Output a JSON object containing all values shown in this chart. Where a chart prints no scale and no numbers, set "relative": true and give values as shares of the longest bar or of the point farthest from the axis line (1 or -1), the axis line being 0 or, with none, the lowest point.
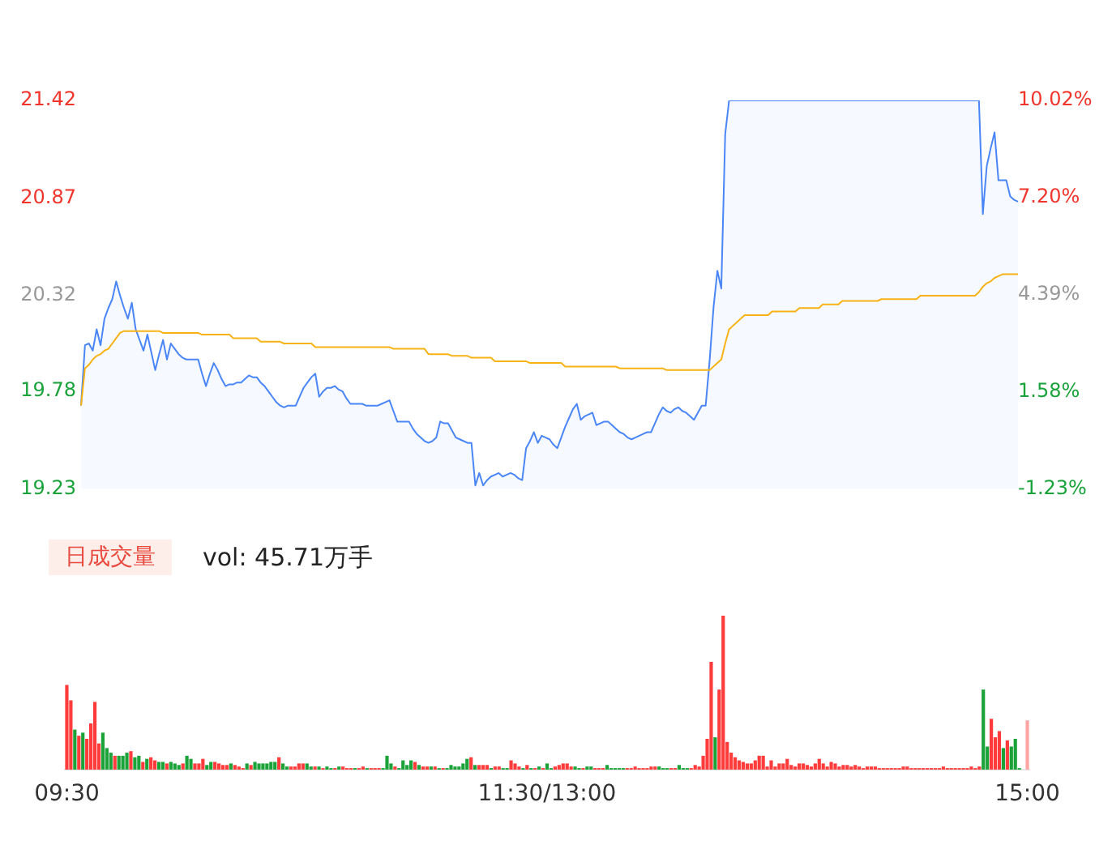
{
  "chart_data": [
    {
      "type": "line",
      "ylim": [
        19.23,
        21.42
      ],
      "yticks": [
        19.23,
        19.78,
        20.32,
        20.87,
        21.42
      ],
      "y2lim": [
        -1.23,
        10.02
      ],
      "y2ticks": [
        {
          "value": -1.23,
          "label": "-1.23%"
        },
        {
          "value": 1.58,
          "label": "1.58%"
        },
        {
          "value": 4.39,
          "label": "4.39%"
        },
        {
          "value": 7.2,
          "label": "7.20%"
        },
        {
          "value": 10.02,
          "label": "10.02%"
        }
      ],
      "tick_labels": "y",
      "categories": [
        null,
        null,
        null,
        null,
        null,
        null,
        null,
        null,
        null,
        null,
        null,
        null,
        null,
        null,
        null,
        null,
        null,
        null,
        null,
        null,
        null,
        null,
        null,
        null,
        null,
        null,
        null,
        null,
        null,
        null,
        null,
        null,
        null,
        null,
        null,
        null,
        null,
        null,
        null,
        null,
        null,
        null,
        null,
        null,
        null,
        null,
        null,
        null,
        null,
        null,
        null,
        null,
        null,
        null,
        null,
        null,
        null,
        null,
        null,
        null,
        null,
        null,
        null,
        null,
        null,
        null,
        null,
        null,
        null,
        null,
        null,
        null,
        null,
        null,
        null,
        null,
        null,
        null,
        null,
        null,
        null,
        null,
        null,
        null,
        null,
        null,
        null,
        null,
        null,
        null,
        null,
        null,
        null,
        null,
        null,
        null,
        null,
        null,
        null,
        null,
        null,
        null,
        null,
        null,
        null,
        null,
        null,
        null,
        null,
        null,
        null,
        null,
        null,
        null,
        null,
        null,
        null,
        null,
        null,
        null,
        null,
        null,
        null,
        null,
        null,
        null,
        null,
        null,
        null,
        null,
        null,
        null,
        null,
        null,
        null,
        null,
        null,
        null,
        null,
        null,
        null,
        null,
        null,
        null,
        null,
        null,
        null,
        null,
        null,
        null,
        null,
        null,
        null,
        null,
        null,
        null,
        null,
        null,
        null,
        null,
        null,
        null,
        null,
        null,
        null,
        null,
        null,
        null,
        null,
        null,
        null,
        null,
        null,
        null,
        null,
        null,
        null,
        null,
        null,
        null,
        null,
        null,
        null,
        null,
        null,
        null,
        null,
        null,
        null,
        null,
        null,
        null,
        null,
        null,
        null,
        null,
        null,
        null,
        null,
        null,
        null,
        null,
        null,
        null,
        null,
        null,
        null,
        null,
        null,
        null,
        null,
        null,
        null,
        null,
        null,
        null,
        null,
        null,
        null,
        null,
        null,
        null,
        null,
        null,
        null,
        null,
        null,
        null,
        null,
        null,
        null,
        null,
        null,
        null,
        null,
        null,
        null,
        null,
        null,
        null,
        null
      ],
      "series": [
        {
          "type": "area",
          "color": "#4a86f7",
          "values": [
            19.7,
            20.04,
            20.05,
            20.01,
            20.13,
            20.04,
            20.19,
            20.25,
            20.3,
            20.4,
            20.32,
            20.25,
            20.19,
            20.28,
            20.13,
            20.07,
            20.01,
            20.1,
            20.0,
            19.9,
            19.99,
            20.07,
            19.96,
            20.05,
            20.02,
            19.99,
            19.97,
            19.96,
            19.96,
            19.96,
            19.96,
            19.88,
            19.81,
            19.88,
            19.94,
            19.9,
            19.85,
            19.81,
            19.82,
            19.82,
            19.83,
            19.83,
            19.85,
            19.87,
            19.86,
            19.86,
            19.83,
            19.81,
            19.78,
            19.75,
            19.72,
            19.7,
            19.69,
            19.7,
            19.7,
            19.7,
            19.75,
            19.8,
            19.83,
            19.86,
            19.88,
            19.75,
            19.78,
            19.8,
            19.8,
            19.81,
            19.79,
            19.78,
            19.74,
            19.71,
            19.71,
            19.71,
            19.71,
            19.7,
            19.7,
            19.7,
            19.7,
            19.71,
            19.72,
            19.73,
            19.67,
            19.61,
            19.61,
            19.61,
            19.61,
            19.57,
            19.54,
            19.52,
            19.5,
            19.49,
            19.5,
            19.52,
            19.61,
            19.6,
            19.6,
            19.56,
            19.52,
            19.51,
            19.5,
            19.49,
            19.49,
            19.25,
            19.32,
            19.25,
            19.28,
            19.3,
            19.31,
            19.32,
            19.3,
            19.31,
            19.32,
            19.31,
            19.29,
            19.28,
            19.46,
            19.5,
            19.55,
            19.49,
            19.53,
            19.52,
            19.51,
            19.48,
            19.46,
            19.52,
            19.58,
            19.63,
            19.68,
            19.71,
            19.62,
            19.64,
            19.65,
            19.66,
            19.59,
            19.6,
            19.61,
            19.61,
            19.59,
            19.57,
            19.55,
            19.54,
            19.52,
            19.51,
            19.52,
            19.53,
            19.54,
            19.55,
            19.55,
            19.6,
            19.65,
            19.69,
            19.67,
            19.66,
            19.68,
            19.69,
            19.67,
            19.66,
            19.64,
            19.62,
            19.66,
            19.7,
            19.7,
            19.95,
            20.25,
            20.46,
            20.36,
            21.23,
            21.42,
            21.42,
            21.42,
            21.42,
            21.42,
            21.42,
            21.42,
            21.42,
            21.42,
            21.42,
            21.42,
            21.42,
            21.42,
            21.42,
            21.42,
            21.42,
            21.42,
            21.42,
            21.42,
            21.42,
            21.42,
            21.42,
            21.42,
            21.42,
            21.42,
            21.42,
            21.42,
            21.42,
            21.42,
            21.42,
            21.42,
            21.42,
            21.42,
            21.42,
            21.42,
            21.42,
            21.42,
            21.42,
            21.42,
            21.42,
            21.42,
            21.42,
            21.42,
            21.42,
            21.42,
            21.42,
            21.42,
            21.42,
            21.42,
            21.42,
            21.42,
            21.42,
            21.42,
            21.42,
            21.42,
            21.42,
            21.42,
            21.42,
            21.42,
            21.42,
            21.42,
            21.42,
            21.42,
            21.42,
            21.42,
            20.78,
            21.05,
            21.15,
            21.24,
            20.97,
            20.97,
            20.97,
            20.88,
            20.86,
            20.85
          ]
        },
        {
          "type": "line",
          "color": "#f7b216",
          "values": [
            19.7,
            19.91,
            19.93,
            19.96,
            19.98,
            19.99,
            20.01,
            20.02,
            20.05,
            20.08,
            20.11,
            20.12,
            20.12,
            20.12,
            20.12,
            20.12,
            20.12,
            20.12,
            20.12,
            20.12,
            20.12,
            20.11,
            20.11,
            20.11,
            20.11,
            20.11,
            20.11,
            20.11,
            20.11,
            20.11,
            20.11,
            20.1,
            20.1,
            20.1,
            20.1,
            20.1,
            20.1,
            20.1,
            20.1,
            20.08,
            20.08,
            20.08,
            20.08,
            20.08,
            20.08,
            20.08,
            20.06,
            20.06,
            20.06,
            20.06,
            20.06,
            20.06,
            20.05,
            20.05,
            20.05,
            20.05,
            20.05,
            20.05,
            20.05,
            20.05,
            20.03,
            20.03,
            20.03,
            20.03,
            20.03,
            20.03,
            20.03,
            20.03,
            20.03,
            20.03,
            20.03,
            20.03,
            20.03,
            20.03,
            20.03,
            20.03,
            20.03,
            20.03,
            20.03,
            20.03,
            20.02,
            20.02,
            20.02,
            20.02,
            20.02,
            20.02,
            20.02,
            20.02,
            20.02,
            19.99,
            19.99,
            19.99,
            19.99,
            19.99,
            19.99,
            19.98,
            19.98,
            19.98,
            19.98,
            19.98,
            19.97,
            19.97,
            19.97,
            19.97,
            19.97,
            19.97,
            19.95,
            19.95,
            19.95,
            19.95,
            19.95,
            19.95,
            19.95,
            19.95,
            19.95,
            19.94,
            19.94,
            19.94,
            19.94,
            19.94,
            19.94,
            19.94,
            19.94,
            19.94,
            19.92,
            19.92,
            19.92,
            19.92,
            19.92,
            19.92,
            19.92,
            19.92,
            19.92,
            19.92,
            19.92,
            19.92,
            19.92,
            19.92,
            19.91,
            19.91,
            19.91,
            19.91,
            19.91,
            19.91,
            19.91,
            19.91,
            19.91,
            19.91,
            19.91,
            19.91,
            19.9,
            19.9,
            19.9,
            19.9,
            19.9,
            19.9,
            19.9,
            19.9,
            19.9,
            19.9,
            19.9,
            19.9,
            19.92,
            19.94,
            19.96,
            20.05,
            20.13,
            20.15,
            20.17,
            20.19,
            20.21,
            20.21,
            20.21,
            20.21,
            20.21,
            20.21,
            20.21,
            20.23,
            20.23,
            20.23,
            20.23,
            20.23,
            20.23,
            20.23,
            20.25,
            20.25,
            20.25,
            20.25,
            20.25,
            20.25,
            20.27,
            20.27,
            20.27,
            20.27,
            20.27,
            20.29,
            20.29,
            20.29,
            20.29,
            20.29,
            20.29,
            20.29,
            20.29,
            20.29,
            20.29,
            20.3,
            20.3,
            20.3,
            20.3,
            20.3,
            20.3,
            20.3,
            20.3,
            20.3,
            20.3,
            20.32,
            20.32,
            20.32,
            20.32,
            20.32,
            20.32,
            20.32,
            20.32,
            20.32,
            20.32,
            20.32,
            20.32,
            20.32,
            20.32,
            20.32,
            20.34,
            20.37,
            20.39,
            20.4,
            20.42,
            20.43,
            20.44,
            20.44,
            20.44,
            20.44,
            20.44
          ]
        }
      ]
    },
    {
      "type": "bar",
      "relative": true,
      "tick_labels": "x",
      "annotations": [
        "日成交量",
        "vol: 45.71万手"
      ],
      "categories": [
        "09:30",
        null,
        null,
        null,
        null,
        null,
        null,
        null,
        null,
        null,
        null,
        null,
        null,
        null,
        null,
        null,
        null,
        null,
        null,
        null,
        null,
        null,
        null,
        null,
        null,
        null,
        null,
        null,
        null,
        null,
        null,
        null,
        null,
        null,
        null,
        null,
        null,
        null,
        null,
        null,
        null,
        null,
        null,
        null,
        null,
        null,
        null,
        null,
        null,
        null,
        null,
        null,
        null,
        null,
        null,
        null,
        null,
        null,
        null,
        null,
        null,
        null,
        null,
        null,
        null,
        null,
        null,
        null,
        null,
        null,
        null,
        null,
        null,
        null,
        null,
        null,
        null,
        null,
        null,
        null,
        null,
        null,
        null,
        null,
        null,
        null,
        null,
        null,
        null,
        null,
        null,
        null,
        null,
        null,
        null,
        null,
        null,
        null,
        null,
        null,
        null,
        null,
        null,
        null,
        null,
        null,
        null,
        null,
        null,
        null,
        null,
        null,
        null,
        null,
        null,
        null,
        null,
        null,
        null,
        null,
        "11:30/13:00",
        null,
        null,
        null,
        null,
        null,
        null,
        null,
        null,
        null,
        null,
        null,
        null,
        null,
        null,
        null,
        null,
        null,
        null,
        null,
        null,
        null,
        null,
        null,
        null,
        null,
        null,
        null,
        null,
        null,
        null,
        null,
        null,
        null,
        null,
        null,
        null,
        null,
        null,
        null,
        null,
        null,
        null,
        null,
        null,
        null,
        null,
        null,
        null,
        null,
        null,
        null,
        null,
        null,
        null,
        null,
        null,
        null,
        null,
        null,
        null,
        null,
        null,
        null,
        null,
        null,
        null,
        null,
        null,
        null,
        null,
        null,
        null,
        null,
        null,
        null,
        null,
        null,
        null,
        null,
        null,
        null,
        null,
        null,
        null,
        null,
        null,
        null,
        null,
        null,
        null,
        null,
        null,
        null,
        null,
        null,
        null,
        null,
        null,
        null,
        null,
        null,
        null,
        null,
        null,
        null,
        null,
        null,
        null,
        null,
        null,
        null,
        null,
        null,
        null,
        null,
        null,
        null,
        null,
        null,
        "15:00"
      ],
      "values": [
        0.55,
        0.45,
        0.26,
        0.22,
        0.24,
        0.2,
        0.3,
        0.44,
        0.17,
        0.24,
        0.14,
        0.11,
        0.09,
        0.09,
        0.09,
        0.11,
        0.12,
        0.08,
        0.09,
        0.05,
        0.07,
        0.08,
        0.06,
        0.05,
        0.05,
        0.04,
        0.05,
        0.04,
        0.03,
        0.04,
        0.09,
        0.07,
        0.04,
        0.04,
        0.07,
        0.03,
        0.05,
        0.05,
        0.04,
        0.03,
        0.03,
        0.04,
        0.03,
        0.02,
        0.01,
        0.04,
        0.03,
        0.05,
        0.04,
        0.04,
        0.04,
        0.05,
        0.05,
        0.08,
        0.04,
        0.02,
        0.02,
        0.02,
        0.04,
        0.04,
        0.04,
        0.02,
        0.02,
        0.02,
        0.01,
        0.02,
        0.01,
        0.01,
        0.02,
        0.02,
        0.01,
        0.01,
        0.01,
        0.01,
        0.02,
        0.01,
        0.01,
        0.01,
        0.01,
        0.01,
        0.09,
        0.04,
        0.02,
        0.01,
        0.06,
        0.03,
        0.06,
        0.05,
        0.03,
        0.02,
        0.02,
        0.02,
        0.02,
        0.01,
        0.01,
        0.01,
        0.03,
        0.02,
        0.02,
        0.04,
        0.07,
        0.08,
        0.03,
        0.03,
        0.03,
        0.03,
        0.01,
        0.02,
        0.02,
        0.01,
        0.01,
        0.06,
        0.04,
        0.02,
        0.01,
        0.03,
        0.01,
        0.01,
        0.02,
        0.01,
        0.04,
        0.01,
        0.02,
        0.03,
        0.04,
        0.04,
        0.02,
        0.02,
        0.01,
        0.01,
        0.02,
        0.02,
        0.01,
        0.01,
        0.01,
        0.03,
        0.01,
        0.01,
        0.01,
        0.01,
        0.01,
        0.01,
        0.02,
        0.01,
        0.01,
        0.01,
        0.02,
        0.02,
        0.02,
        0.01,
        0.01,
        0.01,
        0.01,
        0.03,
        0.01,
        0.01,
        0.01,
        0.03,
        0.02,
        0.09,
        0.2,
        0.7,
        0.21,
        0.52,
        1,
        0.18,
        0.11,
        0.08,
        0.06,
        0.05,
        0.04,
        0.04,
        0.06,
        0.09,
        0.09,
        0.02,
        0.06,
        0.02,
        0.04,
        0.04,
        0.07,
        0.03,
        0.02,
        0.04,
        0.04,
        0.03,
        0.02,
        0.04,
        0.07,
        0.04,
        0.02,
        0.05,
        0.04,
        0.02,
        0.03,
        0.03,
        0.02,
        0.03,
        0.02,
        0.01,
        0.02,
        0.02,
        0.02,
        0.01,
        0.01,
        0.01,
        0.01,
        0.01,
        0.01,
        0.02,
        0.02,
        0.01,
        0.01,
        0.01,
        0.01,
        0.01,
        0.01,
        0.01,
        0.01,
        0.02,
        0.01,
        0.01,
        0.01,
        0.01,
        0.01,
        0.01,
        0.02,
        0.01,
        0.02,
        0.52,
        0.15,
        0.33,
        0.21,
        0.25,
        0.14,
        0.19,
        0.15,
        0.2,
        0.01,
        null,
        0.32
      ],
      "colors": [
        "#ff3b3b",
        "#ff3b3b",
        "#1ba33a",
        "#ff3b3b",
        "#1ba33a",
        "#ff3b3b",
        "#ff3b3b",
        "#ff3b3b",
        "#ff3b3b",
        "#1ba33a",
        "#1ba33a",
        "#1ba33a",
        "#ff3b3b",
        "#1ba33a",
        "#1ba33a",
        "#1ba33a",
        "#ff3b3b",
        "#1ba33a",
        "#1ba33a",
        "#ff3b3b",
        "#1ba33a",
        "#ff3b3b",
        "#ff3b3b",
        "#1ba33a",
        "#1ba33a",
        "#ff3b3b",
        "#1ba33a",
        "#1ba33a",
        "#1ba33a",
        "#ff3b3b",
        "#1ba33a",
        "#1ba33a",
        "#ff3b3b",
        "#ff3b3b",
        "#ff3b3b",
        "#1ba33a",
        "#1ba33a",
        "#ff3b3b",
        "#ff3b3b",
        "#ff3b3b",
        "#ff3b3b",
        "#1ba33a",
        "#ff3b3b",
        "#ff3b3b",
        "#ff3b3b",
        "#1ba33a",
        "#ff3b3b",
        "#1ba33a",
        "#1ba33a",
        "#1ba33a",
        "#1ba33a",
        "#1ba33a",
        "#1ba33a",
        "#ff3b3b",
        "#1ba33a",
        "#1ba33a",
        "#ff3b3b",
        "#ff3b3b",
        "#ff3b3b",
        "#ff3b3b",
        "#1ba33a",
        "#1ba33a",
        "#ff3b3b",
        "#1ba33a",
        "#ff3b3b",
        "#1ba33a",
        "#1ba33a",
        "#ff3b3b",
        "#1ba33a",
        "#ff3b3b",
        "#ff3b3b",
        "#ff3b3b",
        "#1ba33a",
        "#ff3b3b",
        "#ff3b3b",
        "#1ba33a",
        "#ff3b3b",
        "#ff3b3b",
        "#ff3b3b",
        "#1ba33a",
        "#1ba33a",
        "#1ba33a",
        "#ff3b3b",
        "#1ba33a",
        "#1ba33a",
        "#1ba33a",
        "#1ba33a",
        "#ff3b3b",
        "#1ba33a",
        "#ff3b3b",
        "#ff3b3b",
        "#1ba33a",
        "#ff3b3b",
        "#1ba33a",
        "#ff3b3b",
        "#1ba33a",
        "#1ba33a",
        "#1ba33a",
        "#1ba33a",
        "#1ba33a",
        "#1ba33a",
        "#ff3b3b",
        "#1ba33a",
        "#ff3b3b",
        "#ff3b3b",
        "#ff3b3b",
        "#1ba33a",
        "#ff3b3b",
        "#ff3b3b",
        "#1ba33a",
        "#1ba33a",
        "#ff3b3b",
        "#ff3b3b",
        "#ff3b3b",
        "#1ba33a",
        "#ff3b3b",
        "#1ba33a",
        "#ff3b3b",
        "#1ba33a",
        "#ff3b3b",
        "#1ba33a",
        "#1ba33a",
        "#ff3b3b",
        "#ff3b3b",
        "#ff3b3b",
        "#ff3b3b",
        "#ff3b3b",
        "#1ba33a",
        "#1ba33a",
        "#ff3b3b",
        "#1ba33a",
        "#1ba33a",
        "#ff3b3b",
        "#ff3b3b",
        "#ff3b3b",
        "#1ba33a",
        "#1ba33a",
        "#1ba33a",
        "#1ba33a",
        "#1ba33a",
        "#ff3b3b",
        "#ff3b3b",
        "#ff3b3b",
        "#ff3b3b",
        "#ff3b3b",
        "#ff3b3b",
        "#ff3b3b",
        "#ff3b3b",
        "#1ba33a",
        "#1ba33a",
        "#1ba33a",
        "#ff3b3b",
        "#ff3b3b",
        "#1ba33a",
        "#1ba33a",
        "#1ba33a",
        "#ff3b3b",
        "#ff3b3b",
        "#ff3b3b",
        "#ff3b3b",
        "#ff3b3b",
        "#ff3b3b",
        "#1ba33a",
        "#ff3b3b",
        "#ff3b3b",
        "#ff3b3b",
        "#ff3b3b",
        "#ff3b3b",
        "#ff3b3b",
        "#ff3b3b",
        "#ff3b3b",
        "#ff3b3b",
        "#ff3b3b",
        "#ff3b3b",
        "#ff3b3b",
        "#ff3b3b",
        "#ff3b3b",
        "#ff3b3b",
        "#ff3b3b",
        "#ff3b3b",
        "#ff3b3b",
        "#ff3b3b",
        "#ff3b3b",
        "#ff3b3b",
        "#ff3b3b",
        "#ff3b3b",
        "#ff3b3b",
        "#ff3b3b",
        "#ff3b3b",
        "#ff3b3b",
        "#ff3b3b",
        "#ff3b3b",
        "#ff3b3b",
        "#ff3b3b",
        "#ff3b3b",
        "#ff3b3b",
        "#ff3b3b",
        "#ff3b3b",
        "#ff3b3b",
        "#ff3b3b",
        "#ff3b3b",
        "#ff3b3b",
        "#ff3b3b",
        "#ff3b3b",
        "#ff3b3b",
        "#ff3b3b",
        "#ff3b3b",
        "#ff3b3b",
        "#ff3b3b",
        "#ff3b3b",
        "#ff3b3b",
        "#ff3b3b",
        "#ff3b3b",
        "#ff3b3b",
        "#ff3b3b",
        "#ff3b3b",
        "#ff3b3b",
        "#ff3b3b",
        "#ff3b3b",
        "#ff3b3b",
        "#ff3b3b",
        "#ff3b3b",
        "#ff3b3b",
        "#ff3b3b",
        "#ff3b3b",
        "#ff3b3b",
        "#ff3b3b",
        "#ff3b3b",
        "#ff3b3b",
        "#1ba33a",
        "#1ba33a",
        "#ff3b3b",
        "#ff3b3b",
        "#ff3b3b",
        "#1ba33a",
        "#ff3b3b",
        "#1ba33a",
        "#1ba33a",
        "#1ba33a",
        "#ff3b3b",
        "#ffa3a3"
      ]
    }
  ]
}
